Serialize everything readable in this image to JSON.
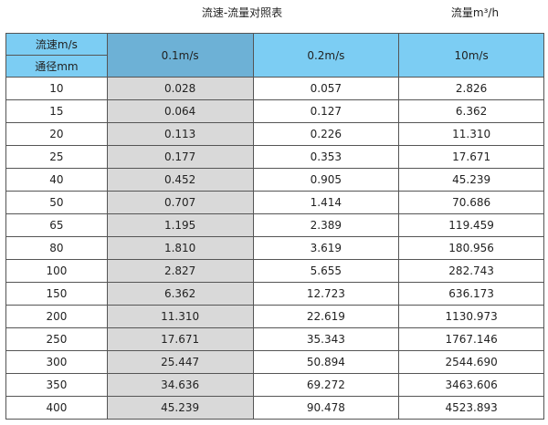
{
  "title": "流速-流量对照表",
  "unit": "流量m³/h",
  "header": {
    "speed_label": "流速m/s",
    "diameter_label": "通径mm",
    "columns": [
      "0.1m/s",
      "0.2m/s",
      "10m/s"
    ]
  },
  "colors": {
    "header": "#7ccdf3",
    "header_highlight": "#6db1d6",
    "highlight_column": "#d9d9d9"
  },
  "rows": [
    [
      "10",
      "0.028",
      "0.057",
      "2.826"
    ],
    [
      "15",
      "0.064",
      "0.127",
      "6.362"
    ],
    [
      "20",
      "0.113",
      "0.226",
      "11.310"
    ],
    [
      "25",
      "0.177",
      "0.353",
      "17.671"
    ],
    [
      "40",
      "0.452",
      "0.905",
      "45.239"
    ],
    [
      "50",
      "0.707",
      "1.414",
      "70.686"
    ],
    [
      "65",
      "1.195",
      "2.389",
      "119.459"
    ],
    [
      "80",
      "1.810",
      "3.619",
      "180.956"
    ],
    [
      "100",
      "2.827",
      "5.655",
      "282.743"
    ],
    [
      "150",
      "6.362",
      "12.723",
      "636.173"
    ],
    [
      "200",
      "11.310",
      "22.619",
      "1130.973"
    ],
    [
      "250",
      "17.671",
      "35.343",
      "1767.146"
    ],
    [
      "300",
      "25.447",
      "50.894",
      "2544.690"
    ],
    [
      "350",
      "34.636",
      "69.272",
      "3463.606"
    ],
    [
      "400",
      "45.239",
      "90.478",
      "4523.893"
    ]
  ]
}
